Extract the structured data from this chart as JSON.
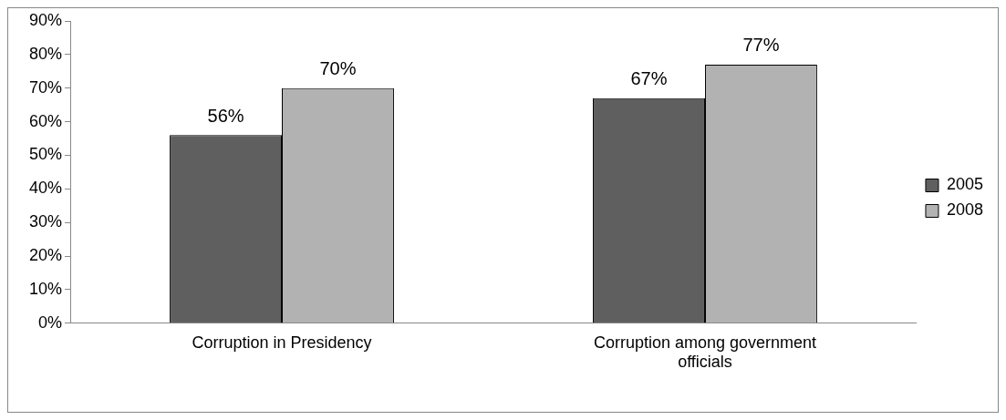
{
  "chart_data": {
    "type": "bar",
    "categories": [
      "Corruption in Presidency",
      "Corruption among government officials"
    ],
    "series": [
      {
        "name": "2005",
        "color": "#5f5f5f",
        "values": [
          56,
          67
        ],
        "value_labels": [
          "56%",
          "67%"
        ]
      },
      {
        "name": "2008",
        "color": "#b2b2b2",
        "values": [
          70,
          77
        ],
        "value_labels": [
          "70%",
          "77%"
        ]
      }
    ],
    "ylim": [
      0,
      90
    ],
    "yticks": [
      {
        "value": 0,
        "label": "0%"
      },
      {
        "value": 10,
        "label": "10%"
      },
      {
        "value": 20,
        "label": "20%"
      },
      {
        "value": 30,
        "label": "30%"
      },
      {
        "value": 40,
        "label": "40%"
      },
      {
        "value": 50,
        "label": "50%"
      },
      {
        "value": 60,
        "label": "60%"
      },
      {
        "value": 70,
        "label": "70%"
      },
      {
        "value": 80,
        "label": "80%"
      },
      {
        "value": 90,
        "label": "90%"
      }
    ],
    "grid": false,
    "legend": "right"
  }
}
